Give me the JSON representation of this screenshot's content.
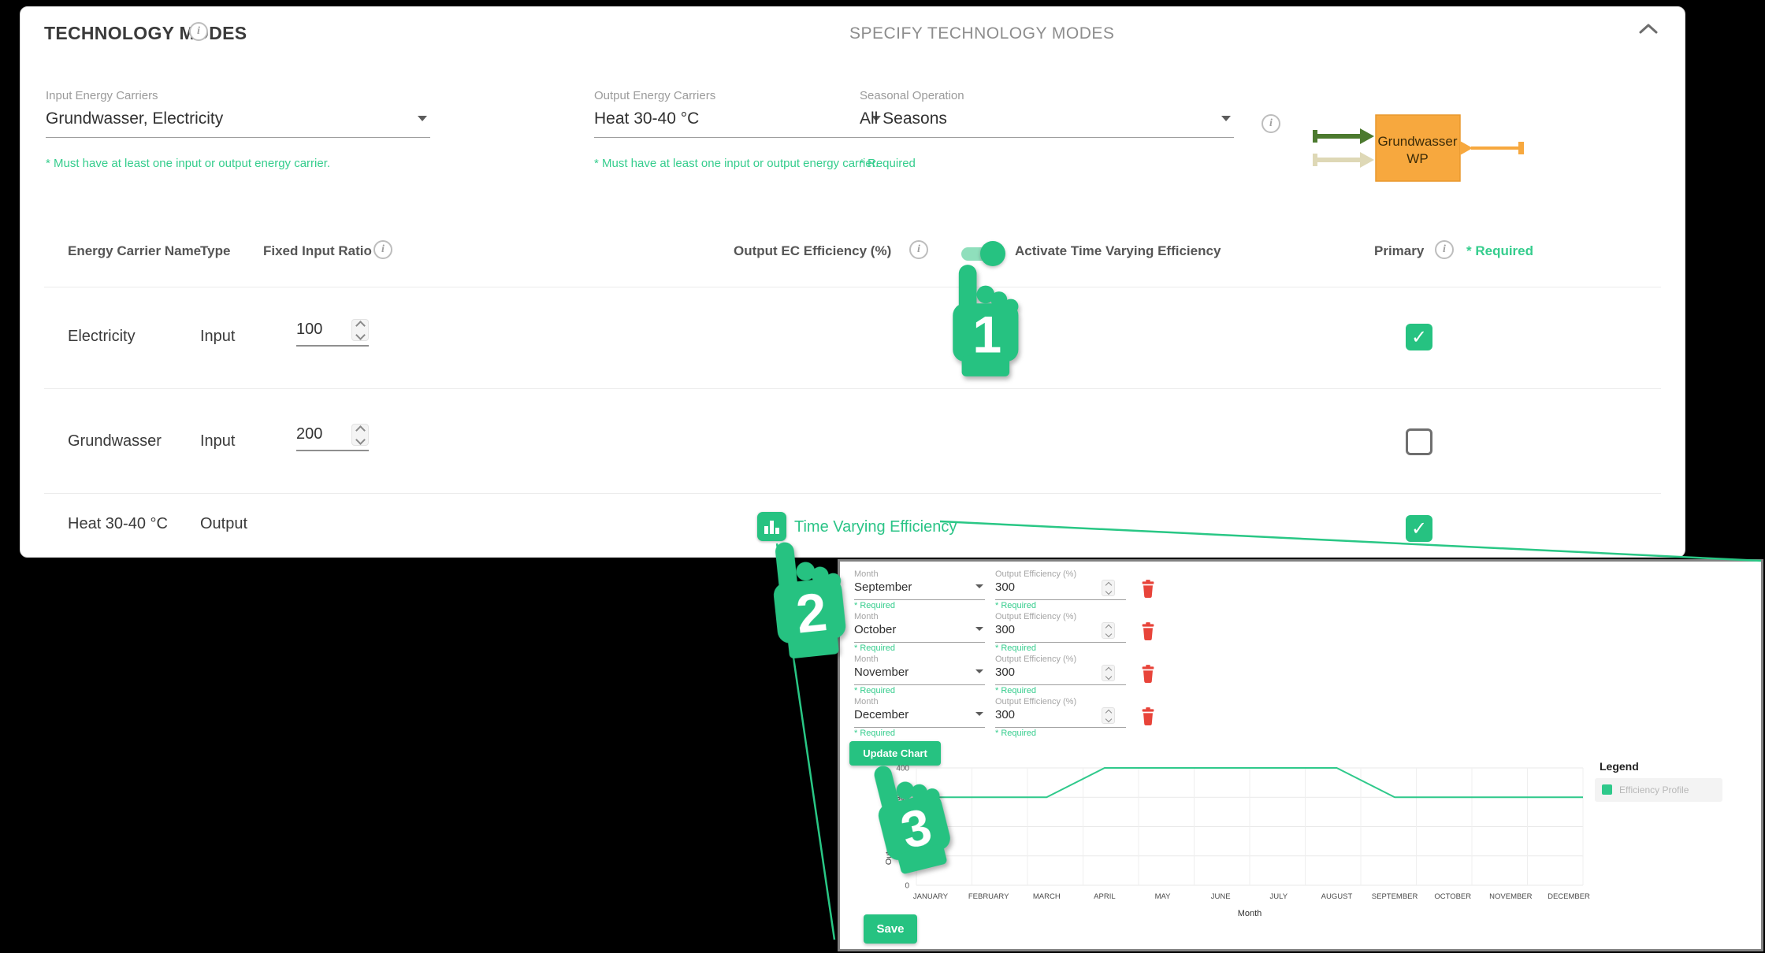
{
  "colors": {
    "accent_green": "#26c281",
    "helper_green": "#35cd8d",
    "danger_red": "#e8443a",
    "node_orange": "#f7a83e",
    "arrow_dark_green": "#4c7a2f",
    "arrow_beige": "#ded8b6"
  },
  "main_panel": {
    "title": "TECHNOLOGY MODES",
    "subtitle": "SPECIFY TECHNOLOGY MODES",
    "fields": [
      {
        "label": "Input Energy Carriers",
        "value": "Grundwasser, Electricity",
        "helper": "* Must have at least one input or output energy carrier."
      },
      {
        "label": "Output Energy Carriers",
        "value": "Heat 30-40 °C",
        "helper": "* Must have at least one input or output energy carrier."
      },
      {
        "label": "Seasonal Operation",
        "value": "All Seasons",
        "helper": "* Required"
      }
    ],
    "diagram": {
      "node_line1": "Grundwasser",
      "node_line2": "WP"
    },
    "table": {
      "headers": {
        "name": "Energy Carrier Name",
        "type": "Type",
        "fixed_input_ratio": "Fixed Input Ratio",
        "output_ec_efficiency": "Output EC Efficiency (%)",
        "activate_toggle": "Activate Time Varying Efficiency",
        "primary": "Primary",
        "required": "* Required"
      },
      "toggle_on": true,
      "rows": [
        {
          "name": "Electricity",
          "type": "Input",
          "fixed_input_ratio": "100",
          "primary": true
        },
        {
          "name": "Grundwasser",
          "type": "Input",
          "fixed_input_ratio": "200",
          "primary": false
        },
        {
          "name": "Heat 30-40 °C",
          "type": "Output",
          "link": "Time Varying Efficiency",
          "primary": true
        }
      ]
    }
  },
  "annotations": {
    "step1": "1",
    "step2": "2",
    "step3": "3"
  },
  "efficiency_panel": {
    "rows": [
      {
        "month_label": "Month",
        "month": "September",
        "eff_label": "Output Efficiency (%)",
        "eff": "300",
        "required": "* Required"
      },
      {
        "month_label": "Month",
        "month": "October",
        "eff_label": "Output Efficiency (%)",
        "eff": "300",
        "required": "* Required"
      },
      {
        "month_label": "Month",
        "month": "November",
        "eff_label": "Output Efficiency (%)",
        "eff": "300",
        "required": "* Required"
      },
      {
        "month_label": "Month",
        "month": "December",
        "eff_label": "Output Efficiency (%)",
        "eff": "300",
        "required": "* Required"
      }
    ],
    "update_chart_label": "Update Chart",
    "save_label": "Save",
    "legend_title": "Legend",
    "legend_item": "Efficiency Profile"
  },
  "chart_data": {
    "type": "line",
    "x": [
      "JANUARY",
      "FEBRUARY",
      "MARCH",
      "APRIL",
      "MAY",
      "JUNE",
      "JULY",
      "AUGUST",
      "SEPTEMBER",
      "OCTOBER",
      "NOVEMBER",
      "DECEMBER"
    ],
    "series": [
      {
        "name": "Efficiency Profile",
        "values": [
          300,
          300,
          300,
          400,
          400,
          400,
          400,
          400,
          300,
          300,
          300,
          300
        ]
      }
    ],
    "title": "",
    "xlabel": "Month",
    "ylabel": "Output Efficiency [%]",
    "ylim": [
      0,
      400
    ],
    "yticks": [
      0,
      100,
      200,
      300,
      400
    ],
    "grid": true,
    "legend_position": "right",
    "line_color": "#2fc98b"
  }
}
